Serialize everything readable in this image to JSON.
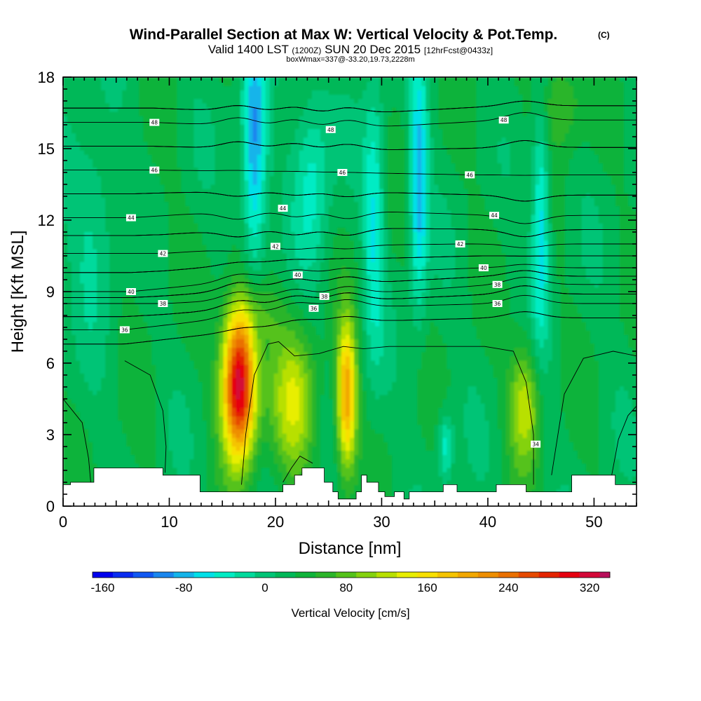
{
  "chart_data": {
    "type": "heatmap",
    "title": "Wind-Parallel Section at Max W: Vertical Velocity & Pot.Temp.",
    "title_mark": "(C)",
    "subtitle": {
      "prefix": "Valid 1400 LST",
      "utc": "(1200Z)",
      "date": "SUN 20 Dec 2015",
      "forecast": "[12hrFcst@0433z]"
    },
    "subtitle2": "boxWmax=337@-33.20,19.73,2228m",
    "xlabel": "Distance [nm]",
    "ylabel": "Height [Kft MSL]",
    "xlim": [
      0,
      54
    ],
    "ylim": [
      0,
      18
    ],
    "xticks": [
      0,
      10,
      20,
      30,
      40,
      50
    ],
    "yticks": [
      0,
      3,
      6,
      9,
      12,
      15,
      18
    ],
    "background_w": 25,
    "updrafts": [
      {
        "x": 16.6,
        "z": 5.2,
        "peak": 337,
        "sx": 1.1,
        "sz": 2.2
      },
      {
        "x": 21.8,
        "z": 4.3,
        "peak": 125,
        "sx": 1.5,
        "sz": 2.2
      },
      {
        "x": 26.7,
        "z": 4.6,
        "peak": 210,
        "sx": 0.65,
        "sz": 2.2
      },
      {
        "x": 43.5,
        "z": 4.3,
        "peak": 125,
        "sx": 1.0,
        "sz": 1.8
      },
      {
        "x": 18.4,
        "z": 8.2,
        "peak": 60,
        "sx": 1.6,
        "sz": 1.0
      },
      {
        "x": 46.8,
        "z": 17.0,
        "peak": 80,
        "sx": 1.4,
        "sz": 1.4
      },
      {
        "x": 40.5,
        "z": 17.0,
        "peak": 35,
        "sx": 1.2,
        "sz": 2.5
      },
      {
        "x": 8.0,
        "z": 10.5,
        "peak": 35,
        "sx": 2.0,
        "sz": 2.5
      },
      {
        "x": 32.0,
        "z": 15.0,
        "peak": 30,
        "sx": 1.0,
        "sz": 2.0
      }
    ],
    "downdrafts": [
      {
        "x": 18.0,
        "z": 15.0,
        "peak": -100,
        "sx": 0.8,
        "sz": 3.5
      },
      {
        "x": 33.5,
        "z": 13.5,
        "peak": -90,
        "sx": 0.6,
        "sz": 3.5
      },
      {
        "x": 45.0,
        "z": 12.0,
        "peak": -70,
        "sx": 0.6,
        "sz": 3.5
      },
      {
        "x": 29.3,
        "z": 12.0,
        "peak": -50,
        "sx": 0.7,
        "sz": 4.0
      },
      {
        "x": 36.0,
        "z": 2.5,
        "peak": -45,
        "sx": 0.5,
        "sz": 1.0
      },
      {
        "x": 23.5,
        "z": 14.0,
        "peak": -40,
        "sx": 1.2,
        "sz": 3.0
      },
      {
        "x": 3.0,
        "z": 12.0,
        "peak": -20,
        "sx": 1.5,
        "sz": 3.0
      }
    ],
    "theta_contour_labels": [
      {
        "text": "48",
        "x": 8.6,
        "z": 16.1
      },
      {
        "text": "48",
        "x": 25.2,
        "z": 15.8
      },
      {
        "text": "48",
        "x": 41.5,
        "z": 16.2
      },
      {
        "text": "46",
        "x": 8.6,
        "z": 14.1
      },
      {
        "text": "46",
        "x": 26.3,
        "z": 14.0
      },
      {
        "text": "46",
        "x": 38.3,
        "z": 13.9
      },
      {
        "text": "44",
        "x": 6.4,
        "z": 12.1
      },
      {
        "text": "44",
        "x": 20.7,
        "z": 12.5
      },
      {
        "text": "44",
        "x": 40.6,
        "z": 12.2
      },
      {
        "text": "42",
        "x": 9.4,
        "z": 10.6
      },
      {
        "text": "42",
        "x": 20.0,
        "z": 10.9
      },
      {
        "text": "42",
        "x": 37.4,
        "z": 11.0
      },
      {
        "text": "40",
        "x": 6.4,
        "z": 9.0
      },
      {
        "text": "40",
        "x": 22.1,
        "z": 9.7
      },
      {
        "text": "40",
        "x": 39.6,
        "z": 10.0
      },
      {
        "text": "38",
        "x": 9.4,
        "z": 8.5
      },
      {
        "text": "38",
        "x": 24.6,
        "z": 8.8
      },
      {
        "text": "38",
        "x": 40.9,
        "z": 9.3
      },
      {
        "text": "36",
        "x": 5.8,
        "z": 7.4
      },
      {
        "text": "36",
        "x": 23.6,
        "z": 8.3
      },
      {
        "text": "36",
        "x": 40.9,
        "z": 8.5
      },
      {
        "text": "34",
        "x": 44.5,
        "z": 2.6
      }
    ],
    "terrain": {
      "x": [
        0,
        0.7,
        0.7,
        2.9,
        2.9,
        9.4,
        9.4,
        12.9,
        12.9,
        20.7,
        20.7,
        21.8,
        21.8,
        22.5,
        22.5,
        24.6,
        24.6,
        25.4,
        25.4,
        25.9,
        25.9,
        27.6,
        27.6,
        28.1,
        28.1,
        28.6,
        28.6,
        29.7,
        29.7,
        30.3,
        30.3,
        31.2,
        31.2,
        32.1,
        32.1,
        32.6,
        32.6,
        35.8,
        35.8,
        37.1,
        37.1,
        40.8,
        40.8,
        43.6,
        43.6,
        47.9,
        47.9,
        52.0,
        52.0,
        54
      ],
      "z": [
        0.9,
        0.9,
        1.0,
        1.0,
        1.6,
        1.6,
        1.3,
        1.3,
        0.6,
        0.6,
        0.9,
        0.9,
        1.3,
        1.3,
        1.6,
        1.6,
        1.0,
        1.0,
        0.6,
        0.6,
        0.3,
        0.3,
        0.6,
        0.6,
        1.3,
        1.3,
        1.0,
        1.0,
        0.6,
        0.6,
        0.4,
        0.4,
        0.6,
        0.6,
        0.3,
        0.3,
        0.6,
        0.6,
        0.9,
        0.9,
        0.6,
        0.6,
        0.9,
        0.9,
        0.6,
        0.6,
        1.3,
        1.3,
        0.9,
        0.9
      ]
    },
    "colorbar": {
      "label": "Vertical Velocity [cm/s]",
      "min": -170,
      "max": 340,
      "step": 20,
      "tick_values": [
        -160,
        -80,
        0,
        80,
        160,
        240,
        320
      ],
      "tick_labels": [
        "-160",
        "-80",
        "0",
        "80",
        "160",
        "240",
        "320"
      ],
      "colors": [
        "#0000ee",
        "#0a2cf0",
        "#1158f2",
        "#1a86ee",
        "#14b4ea",
        "#00e0e8",
        "#00ecc4",
        "#00da9c",
        "#00c476",
        "#00b858",
        "#0fb33a",
        "#2cb52a",
        "#54c21a",
        "#84d20e",
        "#b8e000",
        "#e8ee00",
        "#f8e000",
        "#f5c400",
        "#f2a800",
        "#ee8e00",
        "#ea7000",
        "#e64a00",
        "#e42400",
        "#e60010",
        "#d40838",
        "#b80e5a",
        "#981074"
      ]
    }
  }
}
